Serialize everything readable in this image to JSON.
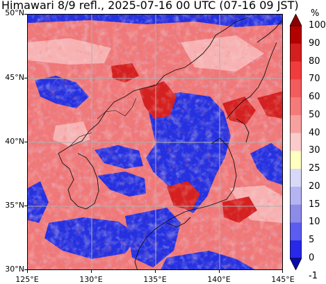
{
  "title": "Himawari 8/9 refl., 2025-07-16 00 UTC (07-16 09 JST)",
  "map": {
    "lon_range": [
      125,
      145
    ],
    "lat_range": [
      30,
      50
    ],
    "grid_lines": true,
    "features": [
      "coastlines",
      "borders",
      "lat-lon grid"
    ],
    "lat_labels": [
      "50°N",
      "45°N",
      "40°N",
      "35°N",
      "30°N"
    ],
    "lon_labels": [
      "125°E",
      "130°E",
      "135°E",
      "140°E",
      "145°E"
    ]
  },
  "colorbar": {
    "unit": "%",
    "labels": [
      "100",
      "90",
      "80",
      "70",
      "60",
      "50",
      "40",
      "30",
      "25",
      "20",
      "15",
      "10",
      "5",
      "0",
      "-1"
    ],
    "colors": [
      "#8b0000",
      "#b30000",
      "#d41f1f",
      "#f03c3c",
      "#f25c5c",
      "#f57a7a",
      "#f7a0a0",
      "#fbcaca",
      "#ffffc0",
      "#d8d8f8",
      "#b4b4f2",
      "#8c8ce8",
      "#5c5cf0",
      "#2828e8",
      "#0a0aa8"
    ]
  }
}
